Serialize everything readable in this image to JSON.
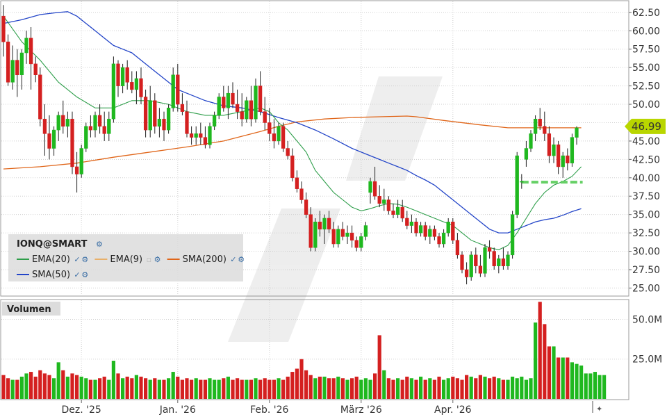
{
  "chart_data": {
    "type": "candlestick",
    "symbol": "IONQ@SMART",
    "last_price": "46.99",
    "x_labels": [
      "Dez. '25",
      "Jan. '26",
      "Feb. '26",
      "März '26",
      "Apr. '26"
    ],
    "x_label_index": [
      17,
      38,
      58,
      78,
      98
    ],
    "y_ticks": [
      "25.00",
      "27.50",
      "30.00",
      "32.50",
      "35.00",
      "37.50",
      "40.00",
      "42.50",
      "45.00",
      "47.50",
      "50.00",
      "52.50",
      "55.00",
      "57.50",
      "60.00",
      "62.50"
    ],
    "ylim": [
      24,
      64
    ],
    "volume_panel": {
      "label": "Volumen",
      "ticks": [
        "25.0M",
        "50.0M"
      ],
      "tick_values": [
        25,
        50
      ],
      "ylim": [
        0,
        62
      ]
    },
    "legend": {
      "rows": [
        [
          {
            "name": "EMA(20)",
            "color": "#2e9e4a",
            "checked": true
          },
          {
            "name": "EMA(9)",
            "color": "#e8b06a",
            "checked": false
          },
          {
            "name": "SMA(200)",
            "color": "#e0661a",
            "checked": true
          }
        ],
        [
          {
            "name": "SMA(50)",
            "color": "#2345c8",
            "checked": true
          }
        ]
      ]
    },
    "colors": {
      "up": "#1fb81f",
      "down": "#d42020",
      "ema20": "#2e9e4a",
      "sma50": "#2345c8",
      "sma200": "#e0661a",
      "price_badge": "#b9d600",
      "dashed_level": "#66d066"
    },
    "dashed_level": {
      "value": 39.4,
      "from_index": 113,
      "to_index": 126
    },
    "candles": [
      [
        62.0,
        63.5,
        56.5,
        58.5
      ],
      [
        58.5,
        59.5,
        52.5,
        53.0
      ],
      [
        53.0,
        58.0,
        52.0,
        56.0
      ],
      [
        56.0,
        57.5,
        51.0,
        54.0
      ],
      [
        54.0,
        57.5,
        52.0,
        57.0
      ],
      [
        57.0,
        60.0,
        55.5,
        59.0
      ],
      [
        59.0,
        60.5,
        52.0,
        55.5
      ],
      [
        55.5,
        56.5,
        53.0,
        54.0
      ],
      [
        54.0,
        55.0,
        47.0,
        48.0
      ],
      [
        48.0,
        50.0,
        43.0,
        46.0
      ],
      [
        46.0,
        48.5,
        42.5,
        44.0
      ],
      [
        44.0,
        47.0,
        43.0,
        46.5
      ],
      [
        46.5,
        49.0,
        45.0,
        48.5
      ],
      [
        48.5,
        50.5,
        46.0,
        47.0
      ],
      [
        47.0,
        49.0,
        45.5,
        48.0
      ],
      [
        48.0,
        49.0,
        40.5,
        41.5
      ],
      [
        41.5,
        43.5,
        38.0,
        40.5
      ],
      [
        40.5,
        44.5,
        40.0,
        44.0
      ],
      [
        44.0,
        47.5,
        43.5,
        47.0
      ],
      [
        47.0,
        48.5,
        45.5,
        46.5
      ],
      [
        46.5,
        49.0,
        45.5,
        48.5
      ],
      [
        48.5,
        50.0,
        46.0,
        47.0
      ],
      [
        47.0,
        49.0,
        45.0,
        46.0
      ],
      [
        46.0,
        49.0,
        45.0,
        48.0
      ],
      [
        48.0,
        56.5,
        47.5,
        55.5
      ],
      [
        55.5,
        56.0,
        51.0,
        52.5
      ],
      [
        52.5,
        55.5,
        51.5,
        55.0
      ],
      [
        55.0,
        56.0,
        52.0,
        53.0
      ],
      [
        53.0,
        54.5,
        51.5,
        52.0
      ],
      [
        52.0,
        54.5,
        50.0,
        53.5
      ],
      [
        53.5,
        55.0,
        50.0,
        51.0
      ],
      [
        51.0,
        52.0,
        45.5,
        46.5
      ],
      [
        46.5,
        52.5,
        45.5,
        50.5
      ],
      [
        50.5,
        51.5,
        46.0,
        47.0
      ],
      [
        47.0,
        49.5,
        45.5,
        48.0
      ],
      [
        48.0,
        49.0,
        45.0,
        46.5
      ],
      [
        46.5,
        50.0,
        46.0,
        49.5
      ],
      [
        49.5,
        55.0,
        49.0,
        54.0
      ],
      [
        54.0,
        55.5,
        49.0,
        50.0
      ],
      [
        50.0,
        51.5,
        48.5,
        49.0
      ],
      [
        49.0,
        50.5,
        45.5,
        46.0
      ],
      [
        46.0,
        47.0,
        44.5,
        45.5
      ],
      [
        45.5,
        47.0,
        44.5,
        46.0
      ],
      [
        46.0,
        47.5,
        44.5,
        45.5
      ],
      [
        45.5,
        47.0,
        44.0,
        44.5
      ],
      [
        44.5,
        47.5,
        44.0,
        47.0
      ],
      [
        47.0,
        49.0,
        46.5,
        48.5
      ],
      [
        48.5,
        51.5,
        48.0,
        51.0
      ],
      [
        51.0,
        52.5,
        49.0,
        49.5
      ],
      [
        49.5,
        52.5,
        48.0,
        51.5
      ],
      [
        51.5,
        53.0,
        49.5,
        50.0
      ],
      [
        50.0,
        52.0,
        48.0,
        49.0
      ],
      [
        49.0,
        51.5,
        47.0,
        48.0
      ],
      [
        48.0,
        51.0,
        47.5,
        50.5
      ],
      [
        50.5,
        52.5,
        47.0,
        48.0
      ],
      [
        48.0,
        53.5,
        47.5,
        52.5
      ],
      [
        52.5,
        54.5,
        48.5,
        49.0
      ],
      [
        49.0,
        51.0,
        46.5,
        47.5
      ],
      [
        47.5,
        49.5,
        45.0,
        46.0
      ],
      [
        46.0,
        48.0,
        44.0,
        45.0
      ],
      [
        45.0,
        47.5,
        44.5,
        47.0
      ],
      [
        47.0,
        47.5,
        43.5,
        44.0
      ],
      [
        44.0,
        45.0,
        42.5,
        43.0
      ],
      [
        43.0,
        44.0,
        39.5,
        40.0
      ],
      [
        40.0,
        41.0,
        38.0,
        38.5
      ],
      [
        38.5,
        39.5,
        36.5,
        37.0
      ],
      [
        37.0,
        38.0,
        34.5,
        35.0
      ],
      [
        35.0,
        36.0,
        30.0,
        30.5
      ],
      [
        30.5,
        34.5,
        30.0,
        34.0
      ],
      [
        34.0,
        35.5,
        32.0,
        33.0
      ],
      [
        33.0,
        35.0,
        31.0,
        34.5
      ],
      [
        34.5,
        35.5,
        32.5,
        33.0
      ],
      [
        33.0,
        34.0,
        30.5,
        31.0
      ],
      [
        31.0,
        33.5,
        30.5,
        33.0
      ],
      [
        33.0,
        34.0,
        31.5,
        32.0
      ],
      [
        32.0,
        33.5,
        31.0,
        32.5
      ],
      [
        32.5,
        33.5,
        30.5,
        31.5
      ],
      [
        31.5,
        32.0,
        30.0,
        30.5
      ],
      [
        30.5,
        32.5,
        30.0,
        32.0
      ],
      [
        32.0,
        34.0,
        31.5,
        33.5
      ],
      [
        38.0,
        40.0,
        36.5,
        39.5
      ],
      [
        39.5,
        41.5,
        37.0,
        37.5
      ],
      [
        37.5,
        39.0,
        36.0,
        36.5
      ],
      [
        36.5,
        38.5,
        35.5,
        37.0
      ],
      [
        37.0,
        37.5,
        35.0,
        35.5
      ],
      [
        35.5,
        36.5,
        34.5,
        35.0
      ],
      [
        35.0,
        37.0,
        34.5,
        36.0
      ],
      [
        36.0,
        37.0,
        34.0,
        34.5
      ],
      [
        34.5,
        35.5,
        33.0,
        33.5
      ],
      [
        33.5,
        35.0,
        32.5,
        34.0
      ],
      [
        34.0,
        34.5,
        32.0,
        32.5
      ],
      [
        32.5,
        34.0,
        32.0,
        33.5
      ],
      [
        33.5,
        34.0,
        31.5,
        32.0
      ],
      [
        32.0,
        33.5,
        31.0,
        33.0
      ],
      [
        33.0,
        33.5,
        31.5,
        32.0
      ],
      [
        32.0,
        32.5,
        30.5,
        31.0
      ],
      [
        31.0,
        33.0,
        30.5,
        32.5
      ],
      [
        32.5,
        34.5,
        32.0,
        34.0
      ],
      [
        34.0,
        34.5,
        31.0,
        31.5
      ],
      [
        31.5,
        32.5,
        29.0,
        29.5
      ],
      [
        29.5,
        30.0,
        27.0,
        27.5
      ],
      [
        27.5,
        28.5,
        25.5,
        26.5
      ],
      [
        26.5,
        30.0,
        26.0,
        29.5
      ],
      [
        29.5,
        30.5,
        27.0,
        28.0
      ],
      [
        28.0,
        29.5,
        26.5,
        27.0
      ],
      [
        27.0,
        31.0,
        26.5,
        30.5
      ],
      [
        30.5,
        31.5,
        29.0,
        30.0
      ],
      [
        30.0,
        30.5,
        27.5,
        28.0
      ],
      [
        28.0,
        29.5,
        27.0,
        29.0
      ],
      [
        29.0,
        30.5,
        27.5,
        28.0
      ],
      [
        28.0,
        30.0,
        27.5,
        29.5
      ],
      [
        29.5,
        35.5,
        29.0,
        35.0
      ],
      [
        35.0,
        43.5,
        34.5,
        43.0
      ],
      [
        39.5,
        40.5,
        38.5,
        39.5
      ],
      [
        42.5,
        45.0,
        41.5,
        44.0
      ],
      [
        44.0,
        46.5,
        43.5,
        46.0
      ],
      [
        46.0,
        48.5,
        45.0,
        48.0
      ],
      [
        48.0,
        49.5,
        46.5,
        47.0
      ],
      [
        47.0,
        49.0,
        45.0,
        46.0
      ],
      [
        46.0,
        47.0,
        42.0,
        43.0
      ],
      [
        43.0,
        45.5,
        42.0,
        44.5
      ],
      [
        44.5,
        45.0,
        40.5,
        41.5
      ],
      [
        41.5,
        43.5,
        40.0,
        43.0
      ],
      [
        43.0,
        44.0,
        41.0,
        42.0
      ],
      [
        42.0,
        46.0,
        41.5,
        45.5
      ],
      [
        45.5,
        47.0,
        44.5,
        46.8
      ]
    ],
    "volume": [
      15,
      13,
      12,
      12,
      14,
      16,
      17,
      14,
      18,
      16,
      15,
      13,
      23,
      18,
      14,
      16,
      15,
      14,
      13,
      12,
      12,
      13,
      14,
      12,
      24,
      16,
      13,
      14,
      13,
      15,
      14,
      13,
      12,
      13,
      12,
      12,
      13,
      17,
      14,
      12,
      13,
      12,
      13,
      12,
      12,
      13,
      12,
      12,
      13,
      14,
      12,
      13,
      12,
      12,
      12,
      13,
      12,
      13,
      12,
      12,
      13,
      12,
      14,
      17,
      19,
      25,
      18,
      15,
      13,
      14,
      14,
      13,
      13,
      14,
      13,
      12,
      13,
      14,
      12,
      13,
      12,
      16,
      40,
      18,
      13,
      12,
      13,
      12,
      14,
      13,
      12,
      14,
      12,
      13,
      12,
      14,
      12,
      13,
      14,
      13,
      12,
      15,
      14,
      13,
      15,
      14,
      13,
      14,
      13,
      12,
      12,
      14,
      13,
      14,
      12,
      13,
      48,
      61,
      47,
      33,
      33,
      26,
      26,
      26,
      23,
      22,
      21,
      16,
      16,
      17,
      15,
      15
    ],
    "ema20": [
      [
        0,
        62.0
      ],
      [
        4,
        58.5
      ],
      [
        8,
        56.0
      ],
      [
        12,
        53.0
      ],
      [
        16,
        51.0
      ],
      [
        20,
        49.5
      ],
      [
        24,
        49.5
      ],
      [
        28,
        50.5
      ],
      [
        32,
        50.5
      ],
      [
        36,
        50.0
      ],
      [
        40,
        49.0
      ],
      [
        44,
        48.5
      ],
      [
        48,
        48.5
      ],
      [
        52,
        49.0
      ],
      [
        56,
        49.5
      ],
      [
        58,
        49.0
      ],
      [
        60,
        47.5
      ],
      [
        62,
        46.5
      ],
      [
        64,
        45.0
      ],
      [
        66,
        43.5
      ],
      [
        68,
        41.0
      ],
      [
        70,
        39.5
      ],
      [
        72,
        38.0
      ],
      [
        74,
        37.0
      ],
      [
        76,
        36.0
      ],
      [
        78,
        35.5
      ],
      [
        80,
        35.8
      ],
      [
        82,
        36.2
      ],
      [
        84,
        36.5
      ],
      [
        86,
        36.4
      ],
      [
        88,
        36.0
      ],
      [
        90,
        35.5
      ],
      [
        92,
        35.0
      ],
      [
        94,
        34.5
      ],
      [
        96,
        34.0
      ],
      [
        98,
        33.5
      ],
      [
        100,
        32.5
      ],
      [
        102,
        31.5
      ],
      [
        104,
        31.0
      ],
      [
        106,
        30.5
      ],
      [
        108,
        30.2
      ],
      [
        110,
        30.8
      ],
      [
        112,
        32.5
      ],
      [
        114,
        34.5
      ],
      [
        116,
        36.5
      ],
      [
        118,
        38.0
      ],
      [
        120,
        39.0
      ],
      [
        122,
        39.5
      ],
      [
        124,
        40.2
      ],
      [
        126,
        41.5
      ]
    ],
    "sma50": [
      [
        0,
        61.0
      ],
      [
        4,
        61.5
      ],
      [
        8,
        62.2
      ],
      [
        12,
        62.5
      ],
      [
        14,
        62.6
      ],
      [
        16,
        62.0
      ],
      [
        18,
        61.0
      ],
      [
        20,
        60.0
      ],
      [
        22,
        59.0
      ],
      [
        24,
        58.0
      ],
      [
        26,
        57.5
      ],
      [
        28,
        57.0
      ],
      [
        30,
        56.0
      ],
      [
        32,
        55.0
      ],
      [
        34,
        54.0
      ],
      [
        36,
        53.0
      ],
      [
        38,
        52.0
      ],
      [
        40,
        51.5
      ],
      [
        44,
        50.5
      ],
      [
        48,
        49.8
      ],
      [
        52,
        49.5
      ],
      [
        56,
        49.0
      ],
      [
        60,
        48.2
      ],
      [
        64,
        47.5
      ],
      [
        68,
        46.5
      ],
      [
        72,
        45.3
      ],
      [
        76,
        44.0
      ],
      [
        80,
        43.0
      ],
      [
        82,
        42.5
      ],
      [
        84,
        42.0
      ],
      [
        86,
        41.5
      ],
      [
        88,
        41.0
      ],
      [
        90,
        40.3
      ],
      [
        92,
        39.7
      ],
      [
        94,
        39.0
      ],
      [
        96,
        38.0
      ],
      [
        98,
        37.0
      ],
      [
        100,
        36.0
      ],
      [
        102,
        35.0
      ],
      [
        104,
        34.0
      ],
      [
        106,
        33.0
      ],
      [
        108,
        32.5
      ],
      [
        110,
        32.5
      ],
      [
        112,
        33.0
      ],
      [
        114,
        33.5
      ],
      [
        116,
        34.0
      ],
      [
        118,
        34.3
      ],
      [
        120,
        34.5
      ],
      [
        122,
        34.9
      ],
      [
        124,
        35.4
      ],
      [
        126,
        35.8
      ]
    ],
    "sma200": [
      [
        0,
        41.2
      ],
      [
        8,
        41.5
      ],
      [
        16,
        42.0
      ],
      [
        24,
        42.8
      ],
      [
        32,
        43.5
      ],
      [
        40,
        44.2
      ],
      [
        48,
        45.0
      ],
      [
        56,
        46.3
      ],
      [
        60,
        47.0
      ],
      [
        64,
        47.6
      ],
      [
        70,
        48.0
      ],
      [
        76,
        48.2
      ],
      [
        82,
        48.3
      ],
      [
        88,
        48.4
      ],
      [
        90,
        48.3
      ],
      [
        96,
        47.8
      ],
      [
        104,
        47.2
      ],
      [
        110,
        46.8
      ],
      [
        118,
        46.8
      ],
      [
        126,
        46.8
      ]
    ]
  }
}
